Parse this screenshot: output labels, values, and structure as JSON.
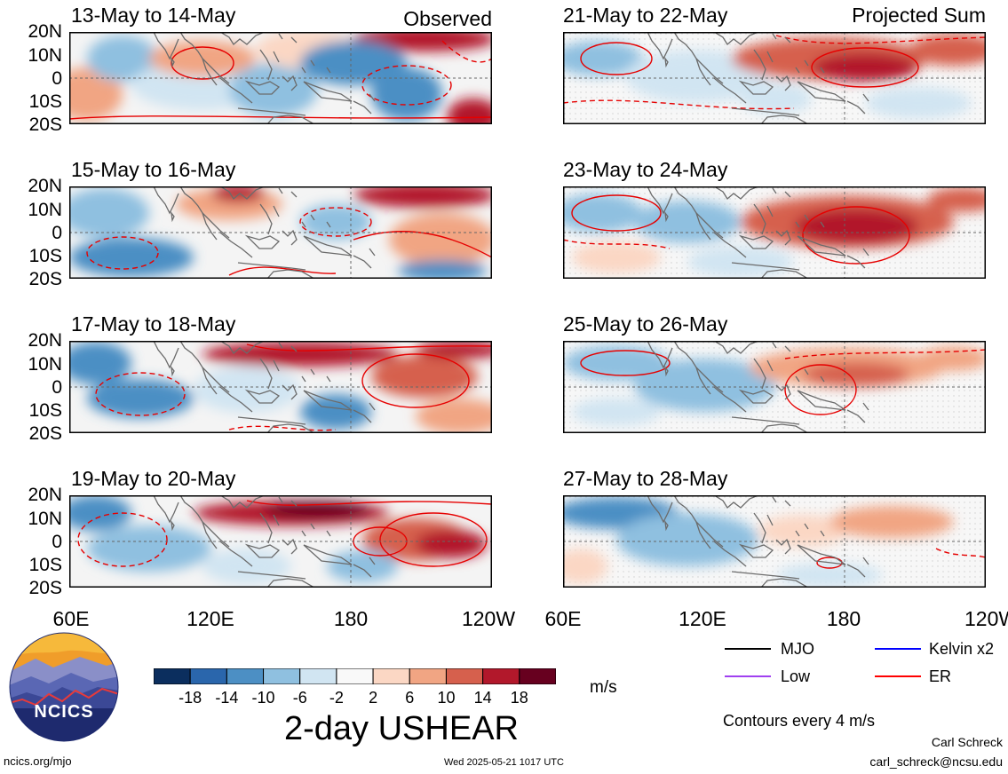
{
  "panels_left": [
    {
      "date": "13-May to 14-May",
      "corner": "Observed"
    },
    {
      "date": "15-May to 16-May",
      "corner": ""
    },
    {
      "date": "17-May to 18-May",
      "corner": ""
    },
    {
      "date": "19-May to 20-May",
      "corner": ""
    }
  ],
  "panels_right": [
    {
      "date": "21-May to 22-May",
      "corner": "Projected Sum"
    },
    {
      "date": "23-May to 24-May",
      "corner": ""
    },
    {
      "date": "25-May to 26-May",
      "corner": ""
    },
    {
      "date": "27-May to 28-May",
      "corner": ""
    }
  ],
  "lat_labels": [
    "20N",
    "10N",
    "0",
    "10S",
    "20S"
  ],
  "lon_labels_left": [
    "60E",
    "120E",
    "180",
    "120W"
  ],
  "lon_labels_right": [
    "60E",
    "120E",
    "180",
    "120W"
  ],
  "legend": {
    "items": [
      {
        "label": "MJO",
        "color": "#000000"
      },
      {
        "label": "Kelvin x2",
        "color": "#0000ff"
      },
      {
        "label": "Low",
        "color": "#a040f0"
      },
      {
        "label": "ER",
        "color": "#ff0000"
      }
    ],
    "contours_note": "Contours every 4 m/s"
  },
  "colorbar": {
    "ticks": [
      "-18",
      "-14",
      "-10",
      "-6",
      "-2",
      "2",
      "6",
      "10",
      "14",
      "18"
    ],
    "colors": [
      "#0b2e5e",
      "#2a66ac",
      "#4c8fc4",
      "#8fc0e0",
      "#d1e5f2",
      "#f9f9f9",
      "#fbd7c4",
      "#f1a583",
      "#d6604d",
      "#b2182b",
      "#67001f"
    ],
    "units": "m/s"
  },
  "main_title": "2-day USHEAR",
  "logo": {
    "text": "NCICS"
  },
  "footer": {
    "url": "ncics.org/mjo",
    "timestamp": "Wed 2025-05-21 1017 UTC",
    "author": "Carl Schreck",
    "email": "carl_schreck@ncsu.edu"
  }
}
